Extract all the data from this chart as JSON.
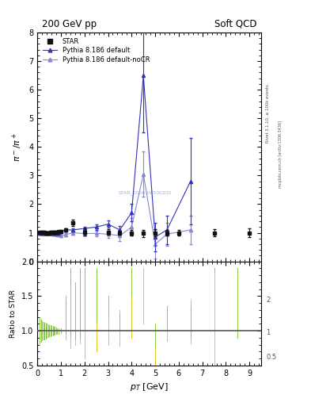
{
  "title_left": "200 GeV pp",
  "title_right": "Soft QCD",
  "ylabel_main": "$\\pi^- / \\pi^+$",
  "ylabel_ratio": "Ratio to STAR",
  "xlabel": "$p_T$ [GeV]",
  "right_label1": "Rivet 3.1.10, ≥ 100k events",
  "right_label2": "mcplots.cern.ch [arXiv:1306.3436]",
  "watermark": "STAR_2006.06500200",
  "star_x": [
    0.1,
    0.15,
    0.2,
    0.25,
    0.3,
    0.35,
    0.4,
    0.45,
    0.5,
    0.55,
    0.6,
    0.65,
    0.7,
    0.75,
    0.8,
    0.85,
    0.9,
    1.0,
    1.2,
    1.5,
    2.0,
    3.0,
    3.5,
    4.0,
    4.5,
    5.0,
    5.5,
    6.0,
    7.5,
    9.0
  ],
  "star_y": [
    1.02,
    1.01,
    1.01,
    1.01,
    1.01,
    1.0,
    1.0,
    1.0,
    1.0,
    1.01,
    1.01,
    1.01,
    1.01,
    1.02,
    1.02,
    1.02,
    1.03,
    1.05,
    1.1,
    1.35,
    1.02,
    1.02,
    1.0,
    1.0,
    0.98,
    1.0,
    1.0,
    1.0,
    1.0,
    1.0
  ],
  "star_yerr": [
    0.03,
    0.03,
    0.03,
    0.03,
    0.03,
    0.03,
    0.03,
    0.03,
    0.03,
    0.03,
    0.03,
    0.03,
    0.03,
    0.03,
    0.03,
    0.03,
    0.03,
    0.04,
    0.05,
    0.1,
    0.12,
    0.1,
    0.08,
    0.1,
    0.12,
    0.12,
    0.1,
    0.1,
    0.12,
    0.15
  ],
  "pythia_x": [
    0.1,
    0.15,
    0.2,
    0.25,
    0.3,
    0.35,
    0.4,
    0.45,
    0.5,
    0.55,
    0.6,
    0.65,
    0.7,
    0.75,
    0.8,
    0.85,
    0.9,
    1.0,
    1.2,
    1.5,
    2.0,
    2.5,
    3.0,
    3.5,
    4.0,
    4.5,
    5.0,
    5.5,
    6.5
  ],
  "pythia_y": [
    1.0,
    1.0,
    1.0,
    1.0,
    1.0,
    1.0,
    1.0,
    1.0,
    1.0,
    1.0,
    1.0,
    1.0,
    1.0,
    1.0,
    1.0,
    1.0,
    1.0,
    1.05,
    1.1,
    1.1,
    1.15,
    1.2,
    1.3,
    1.1,
    1.7,
    6.5,
    0.85,
    1.1,
    2.8
  ],
  "pythia_yerr": [
    0.02,
    0.02,
    0.02,
    0.02,
    0.02,
    0.02,
    0.02,
    0.02,
    0.02,
    0.02,
    0.02,
    0.02,
    0.02,
    0.02,
    0.02,
    0.02,
    0.02,
    0.03,
    0.04,
    0.05,
    0.07,
    0.1,
    0.12,
    0.15,
    0.3,
    2.0,
    0.5,
    0.5,
    1.5
  ],
  "nocr_x": [
    0.1,
    0.15,
    0.2,
    0.25,
    0.3,
    0.35,
    0.4,
    0.45,
    0.5,
    0.55,
    0.6,
    0.65,
    0.7,
    0.75,
    0.8,
    0.85,
    0.9,
    1.0,
    1.2,
    1.5,
    2.0,
    2.5,
    3.0,
    3.5,
    4.0,
    4.5,
    5.0,
    5.5,
    6.5
  ],
  "nocr_y": [
    1.0,
    1.0,
    1.0,
    0.99,
    0.99,
    0.99,
    0.99,
    0.99,
    0.99,
    0.99,
    0.98,
    0.97,
    0.97,
    0.96,
    0.95,
    0.93,
    0.92,
    0.9,
    0.93,
    1.0,
    0.97,
    0.98,
    0.95,
    0.9,
    1.2,
    3.05,
    0.6,
    0.95,
    1.1
  ],
  "nocr_yerr": [
    0.02,
    0.02,
    0.02,
    0.02,
    0.02,
    0.02,
    0.02,
    0.02,
    0.02,
    0.02,
    0.02,
    0.02,
    0.02,
    0.02,
    0.02,
    0.03,
    0.03,
    0.04,
    0.05,
    0.08,
    0.08,
    0.1,
    0.12,
    0.2,
    0.3,
    0.8,
    0.5,
    0.4,
    0.5
  ],
  "ratio_pythia_x": [
    0.1,
    0.15,
    0.2,
    0.25,
    0.3,
    0.35,
    0.4,
    0.45,
    0.5,
    0.55,
    0.6,
    0.65,
    0.7,
    0.75,
    0.8,
    0.85,
    0.9,
    1.0,
    1.2,
    1.4,
    1.6,
    1.8,
    2.0,
    2.5,
    3.0,
    3.5,
    4.0,
    4.5,
    5.0,
    5.5,
    6.5,
    7.5,
    8.5
  ],
  "ratio_pythia_lo": [
    0.82,
    0.84,
    0.86,
    0.87,
    0.88,
    0.89,
    0.9,
    0.91,
    0.92,
    0.92,
    0.93,
    0.93,
    0.94,
    0.94,
    0.95,
    0.96,
    0.96,
    0.97,
    0.95,
    0.92,
    0.87,
    0.9,
    1.0,
    1.1,
    1.2,
    1.0,
    1.5,
    1.9,
    0.75,
    1.0,
    0.9,
    1.85,
    0.9
  ],
  "ratio_pythia_hi": [
    1.18,
    1.16,
    1.14,
    1.13,
    1.12,
    1.11,
    1.1,
    1.09,
    1.08,
    1.08,
    1.07,
    1.07,
    1.06,
    1.06,
    1.05,
    1.04,
    1.04,
    1.03,
    1.45,
    1.9,
    1.7,
    1.9,
    1.9,
    1.9,
    1.5,
    1.25,
    1.9,
    1.9,
    1.1,
    1.35,
    1.35,
    1.9,
    1.9
  ],
  "ratio_nocr_x": [
    0.1,
    0.15,
    0.2,
    0.25,
    0.3,
    0.35,
    0.4,
    0.45,
    0.5,
    0.55,
    0.6,
    0.65,
    0.7,
    0.75,
    0.8,
    0.85,
    0.9,
    1.0,
    1.2,
    1.4,
    1.6,
    1.8,
    2.0,
    2.5,
    3.0,
    3.5,
    4.0,
    4.5,
    5.0,
    5.5,
    6.5,
    7.5,
    8.5
  ],
  "ratio_nocr_lo": [
    0.82,
    0.84,
    0.86,
    0.87,
    0.88,
    0.89,
    0.9,
    0.91,
    0.92,
    0.92,
    0.93,
    0.93,
    0.94,
    0.94,
    0.95,
    0.96,
    0.96,
    0.97,
    0.88,
    0.75,
    0.8,
    0.82,
    0.6,
    0.7,
    0.8,
    0.78,
    0.9,
    1.1,
    0.5,
    0.85,
    0.82,
    0.45,
    0.9
  ],
  "ratio_nocr_hi": [
    1.18,
    1.16,
    1.14,
    1.13,
    1.12,
    1.11,
    1.1,
    1.09,
    1.08,
    1.08,
    1.07,
    1.07,
    1.06,
    1.06,
    1.05,
    1.04,
    1.04,
    1.03,
    1.5,
    1.9,
    1.65,
    1.5,
    1.6,
    1.9,
    1.4,
    1.3,
    1.7,
    1.9,
    0.9,
    1.3,
    1.45,
    1.9,
    1.8
  ],
  "xlim": [
    0,
    9.5
  ],
  "ylim_main": [
    0,
    8
  ],
  "ylim_ratio": [
    0.5,
    2.0
  ],
  "yticks_main": [
    0,
    1,
    2,
    3,
    4,
    5,
    6,
    7,
    8
  ],
  "yticks_ratio": [
    0.5,
    1.0,
    1.5,
    2.0
  ],
  "xticks": [
    0,
    1,
    2,
    3,
    4,
    5,
    6,
    7,
    8,
    9
  ],
  "star_color": "#111111",
  "pythia_color": "#3333bb",
  "nocr_color": "#8888cc",
  "ratio_pythia_color": "#88cc44",
  "ratio_nocr_color": "#ddcc22",
  "bg_color": "#ffffff",
  "legend_star": "STAR",
  "legend_pythia": "Pythia 8.186 default",
  "legend_nocr": "Pythia 8.186 default-noCR"
}
